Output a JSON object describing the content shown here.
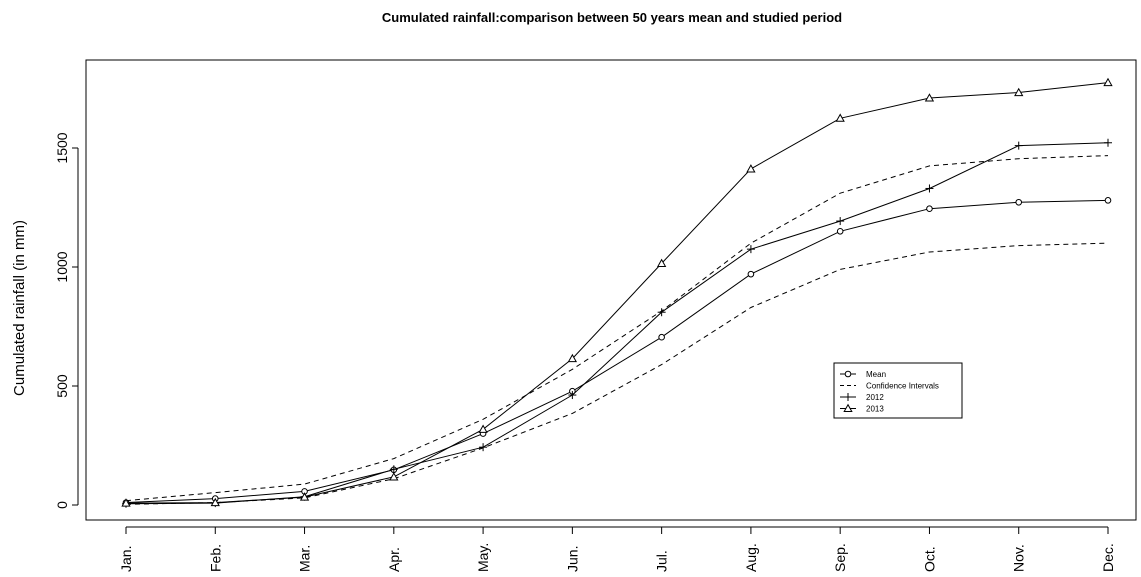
{
  "chart_data": {
    "type": "line",
    "title": "Cumulated rainfall:comparison between 50 years mean and studied period",
    "xlabel": "",
    "ylabel": "Cumulated rainfall (in mm)",
    "categories": [
      "Jan.",
      "Feb.",
      "Mar.",
      "Apr.",
      "May.",
      "Jun.",
      "Jul.",
      "Aug.",
      "Sep.",
      "Oct.",
      "Nov.",
      "Dec."
    ],
    "yticks": [
      0,
      500,
      1000,
      1500
    ],
    "ylim": [
      -50,
      1850
    ],
    "grid": false,
    "legend_position": "center-right",
    "series": [
      {
        "name": "Mean",
        "style": "circle",
        "dash": "solid",
        "values": [
          10,
          27,
          57,
          148,
          300,
          478,
          705,
          970,
          1150,
          1245,
          1272,
          1280
        ]
      },
      {
        "name": "Confidence Intervals",
        "style": "none",
        "dash": "dashed",
        "values": [
          18,
          52,
          88,
          195,
          360,
          570,
          815,
          1100,
          1310,
          1425,
          1455,
          1468
        ]
      },
      {
        "name": "Confidence Intervals",
        "style": "none",
        "dash": "dashed",
        "legend": false,
        "values": [
          3,
          10,
          30,
          110,
          240,
          385,
          590,
          830,
          990,
          1063,
          1090,
          1100
        ]
      },
      {
        "name": "2012",
        "style": "plus",
        "dash": "solid",
        "values": [
          5,
          8,
          35,
          150,
          243,
          462,
          810,
          1075,
          1193,
          1330,
          1510,
          1522
        ]
      },
      {
        "name": "2013",
        "style": "triangle",
        "dash": "solid",
        "values": [
          8,
          10,
          33,
          118,
          318,
          615,
          1015,
          1412,
          1625,
          1710,
          1733,
          1775
        ]
      }
    ]
  }
}
